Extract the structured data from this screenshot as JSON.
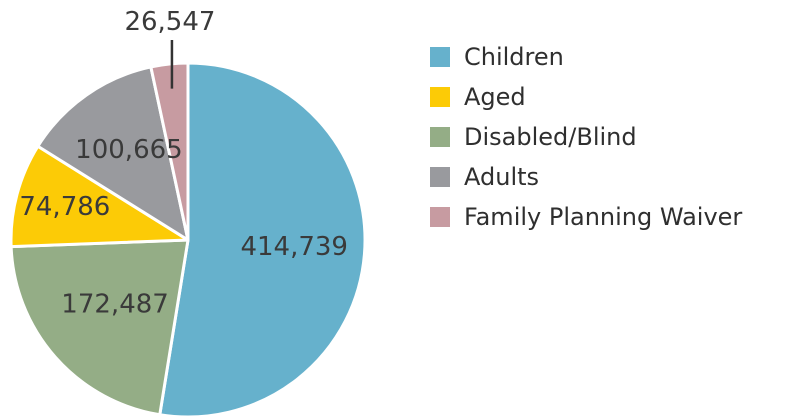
{
  "chart_data": {
    "type": "pie",
    "slices": [
      {
        "label": "Children",
        "value": 414739,
        "display": "414,739",
        "color": "#66b1cc"
      },
      {
        "label": "Disabled/Blind",
        "value": 172487,
        "display": "172,487",
        "color": "#94ad86"
      },
      {
        "label": "Aged",
        "value": 74786,
        "display": "74,786",
        "color": "#fccb06"
      },
      {
        "label": "Adults",
        "value": 100665,
        "display": "100,665",
        "color": "#999a9e"
      },
      {
        "label": "Family Planning Waiver",
        "value": 26547,
        "display": "26,547",
        "color": "#c79ba1"
      }
    ],
    "legend": [
      "Children",
      "Aged",
      "Disabled/Blind",
      "Adults",
      "Family Planning Waiver"
    ],
    "legend_position": "right",
    "start": "12 o'clock",
    "direction": "clockwise",
    "slice_border_color": "#ffffff"
  }
}
